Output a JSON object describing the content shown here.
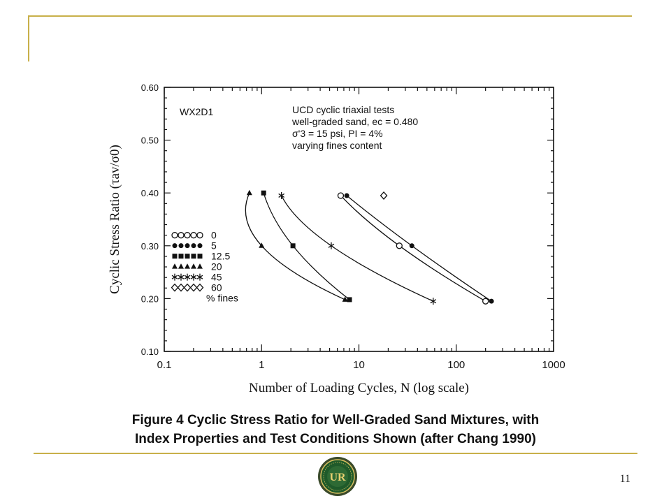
{
  "slide": {
    "caption_line1": "Figure 4 Cyclic Stress Ratio for Well-Graded Sand Mixtures, with",
    "caption_line2": "Index Properties and Test Conditions Shown (after Chang 1990)",
    "page_number": "11",
    "logo_text": "UR",
    "accent_color": "#c8b04a"
  },
  "chart_data": {
    "type": "scatter",
    "title": "",
    "xlabel": "Number of Loading Cycles, N (log scale)",
    "ylabel": "Cyclic Stress Ratio (τav/σ0)",
    "x_scale": "log",
    "xlim": [
      0.1,
      1000
    ],
    "ylim": [
      0.1,
      0.6
    ],
    "x_ticks": [
      {
        "value": 0.1,
        "label": "0.1"
      },
      {
        "value": 1,
        "label": "1"
      },
      {
        "value": 10,
        "label": "10"
      },
      {
        "value": 100,
        "label": "100"
      },
      {
        "value": 1000,
        "label": "1000"
      }
    ],
    "y_ticks": [
      {
        "value": 0.1,
        "label": "0.10"
      },
      {
        "value": 0.2,
        "label": "0.20"
      },
      {
        "value": 0.3,
        "label": "0.30"
      },
      {
        "value": 0.4,
        "label": "0.40"
      },
      {
        "value": 0.5,
        "label": "0.50"
      },
      {
        "value": 0.6,
        "label": "0.60"
      }
    ],
    "grid": false,
    "sample_label": "WX2D1",
    "annotation_lines": [
      "UCD cyclic triaxial tests",
      "well-graded sand, ec = 0.480",
      "σ'3 = 15 psi, PI = 4%",
      "varying fines content"
    ],
    "legend": {
      "placement": "lower-left",
      "footer": "% fines",
      "entries": [
        {
          "label": "0",
          "marker": "open-circle"
        },
        {
          "label": "5",
          "marker": "filled-circle"
        },
        {
          "label": "12.5",
          "marker": "filled-square"
        },
        {
          "label": "20",
          "marker": "filled-triangle"
        },
        {
          "label": "45",
          "marker": "asterisk"
        },
        {
          "label": "60",
          "marker": "open-diamond"
        }
      ]
    },
    "series": [
      {
        "name": "0",
        "marker": "open-circle",
        "curve": true,
        "points": [
          [
            6.5,
            0.395
          ],
          [
            26,
            0.3
          ],
          [
            200,
            0.195
          ]
        ]
      },
      {
        "name": "5",
        "marker": "filled-circle",
        "curve": true,
        "points": [
          [
            7.5,
            0.395
          ],
          [
            35,
            0.3
          ],
          [
            230,
            0.195
          ]
        ]
      },
      {
        "name": "12.5",
        "marker": "filled-square",
        "curve": true,
        "points": [
          [
            1.05,
            0.4
          ],
          [
            2.1,
            0.3
          ],
          [
            8.0,
            0.198
          ]
        ]
      },
      {
        "name": "20",
        "marker": "filled-triangle",
        "curve": true,
        "points": [
          [
            0.75,
            0.4
          ],
          [
            1.0,
            0.3
          ],
          [
            7.2,
            0.198
          ]
        ]
      },
      {
        "name": "45",
        "marker": "asterisk",
        "curve": true,
        "points": [
          [
            1.6,
            0.395
          ],
          [
            5.2,
            0.3
          ],
          [
            58,
            0.195
          ]
        ]
      },
      {
        "name": "60",
        "marker": "open-diamond",
        "curve": false,
        "points": [
          [
            18,
            0.395
          ]
        ]
      }
    ]
  }
}
